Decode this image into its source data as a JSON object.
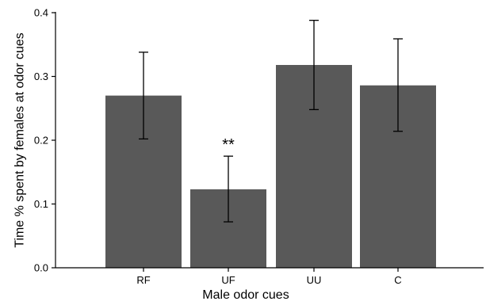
{
  "chart_data": {
    "type": "bar",
    "categories": [
      "RF",
      "UF",
      "UU",
      "C"
    ],
    "values": [
      0.27,
      0.123,
      0.318,
      0.286
    ],
    "error_low": [
      0.202,
      0.072,
      0.248,
      0.214
    ],
    "error_high": [
      0.338,
      0.175,
      0.388,
      0.359
    ],
    "xlabel": "Male odor cues",
    "ylabel": "Time % spent by females at odor cues",
    "ylim": [
      0,
      0.4
    ],
    "yticks": [
      0.0,
      0.1,
      0.2,
      0.3,
      0.4
    ],
    "ytick_labels": [
      "0.0",
      "0.1",
      "0.2",
      "0.3",
      "0.4"
    ],
    "grid": false,
    "bar_color": "#595959",
    "annotations": [
      {
        "category": "UF",
        "text": "**"
      }
    ]
  }
}
